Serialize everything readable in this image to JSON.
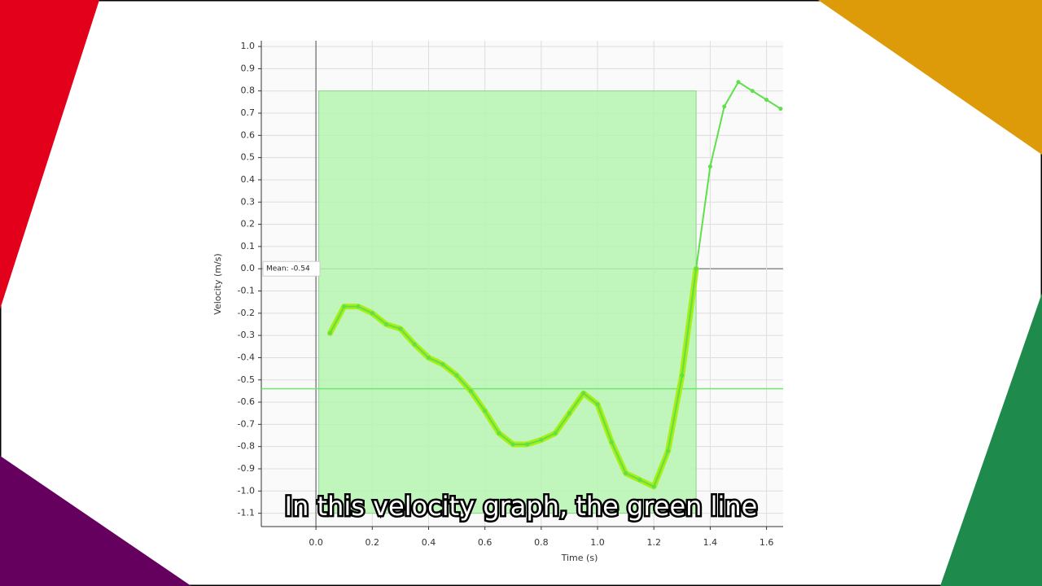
{
  "caption": "In this velocity graph, the green line",
  "chart_data": {
    "type": "line",
    "xlabel": "Time (s)",
    "ylabel": "Velocity (m/s)",
    "xlim": [
      -0.194,
      1.659
    ],
    "ylim": [
      -1.16,
      1.026
    ],
    "xticks": [
      {
        "value": 0,
        "label": "0.0"
      },
      0.2,
      0.4,
      0.6,
      0.8,
      {
        "value": 1,
        "label": "1.0"
      },
      1.2,
      1.4,
      1.6
    ],
    "yticks": [
      -1.1,
      {
        "value": -1,
        "label": "-1.0"
      },
      -0.9,
      -0.8,
      -0.7,
      -0.6,
      -0.5,
      -0.4,
      -0.3,
      -0.2,
      -0.1,
      {
        "value": 0,
        "label": "0.0"
      },
      0.1,
      0.2,
      0.3,
      0.4,
      0.5,
      0.6,
      0.7,
      0.8,
      0.9,
      {
        "value": 1,
        "label": "1.0"
      }
    ],
    "grid": true,
    "selection": {
      "x": [
        0.01,
        1.35
      ],
      "y": [
        -1.1,
        0.8
      ],
      "color": "#b5f5b0"
    },
    "mean": {
      "value": -0.54,
      "label": "Mean: -0.54",
      "color": "#6ee86e"
    },
    "series": [
      {
        "color": "#5fe04a",
        "highlight_color": "#a6ee00",
        "x": [
          0.05,
          0.1,
          0.15,
          0.2,
          0.25,
          0.3,
          0.35,
          0.4,
          0.45,
          0.5,
          0.55,
          0.6,
          0.65,
          0.7,
          0.75,
          0.8,
          0.85,
          0.9,
          0.95,
          1.0,
          1.05,
          1.1,
          1.15,
          1.2,
          1.25,
          1.3,
          1.35,
          1.4,
          1.45,
          1.5,
          1.55,
          1.6,
          1.65
        ],
        "values": [
          -0.29,
          -0.17,
          -0.17,
          -0.2,
          -0.25,
          -0.27,
          -0.34,
          -0.4,
          -0.43,
          -0.48,
          -0.55,
          -0.64,
          -0.74,
          -0.79,
          -0.79,
          -0.77,
          -0.74,
          -0.65,
          -0.56,
          -0.61,
          -0.78,
          -0.92,
          -0.95,
          -0.98,
          -0.82,
          -0.48,
          0.0,
          0.46,
          0.73,
          0.84,
          0.8,
          0.76,
          0.72
        ]
      }
    ]
  }
}
